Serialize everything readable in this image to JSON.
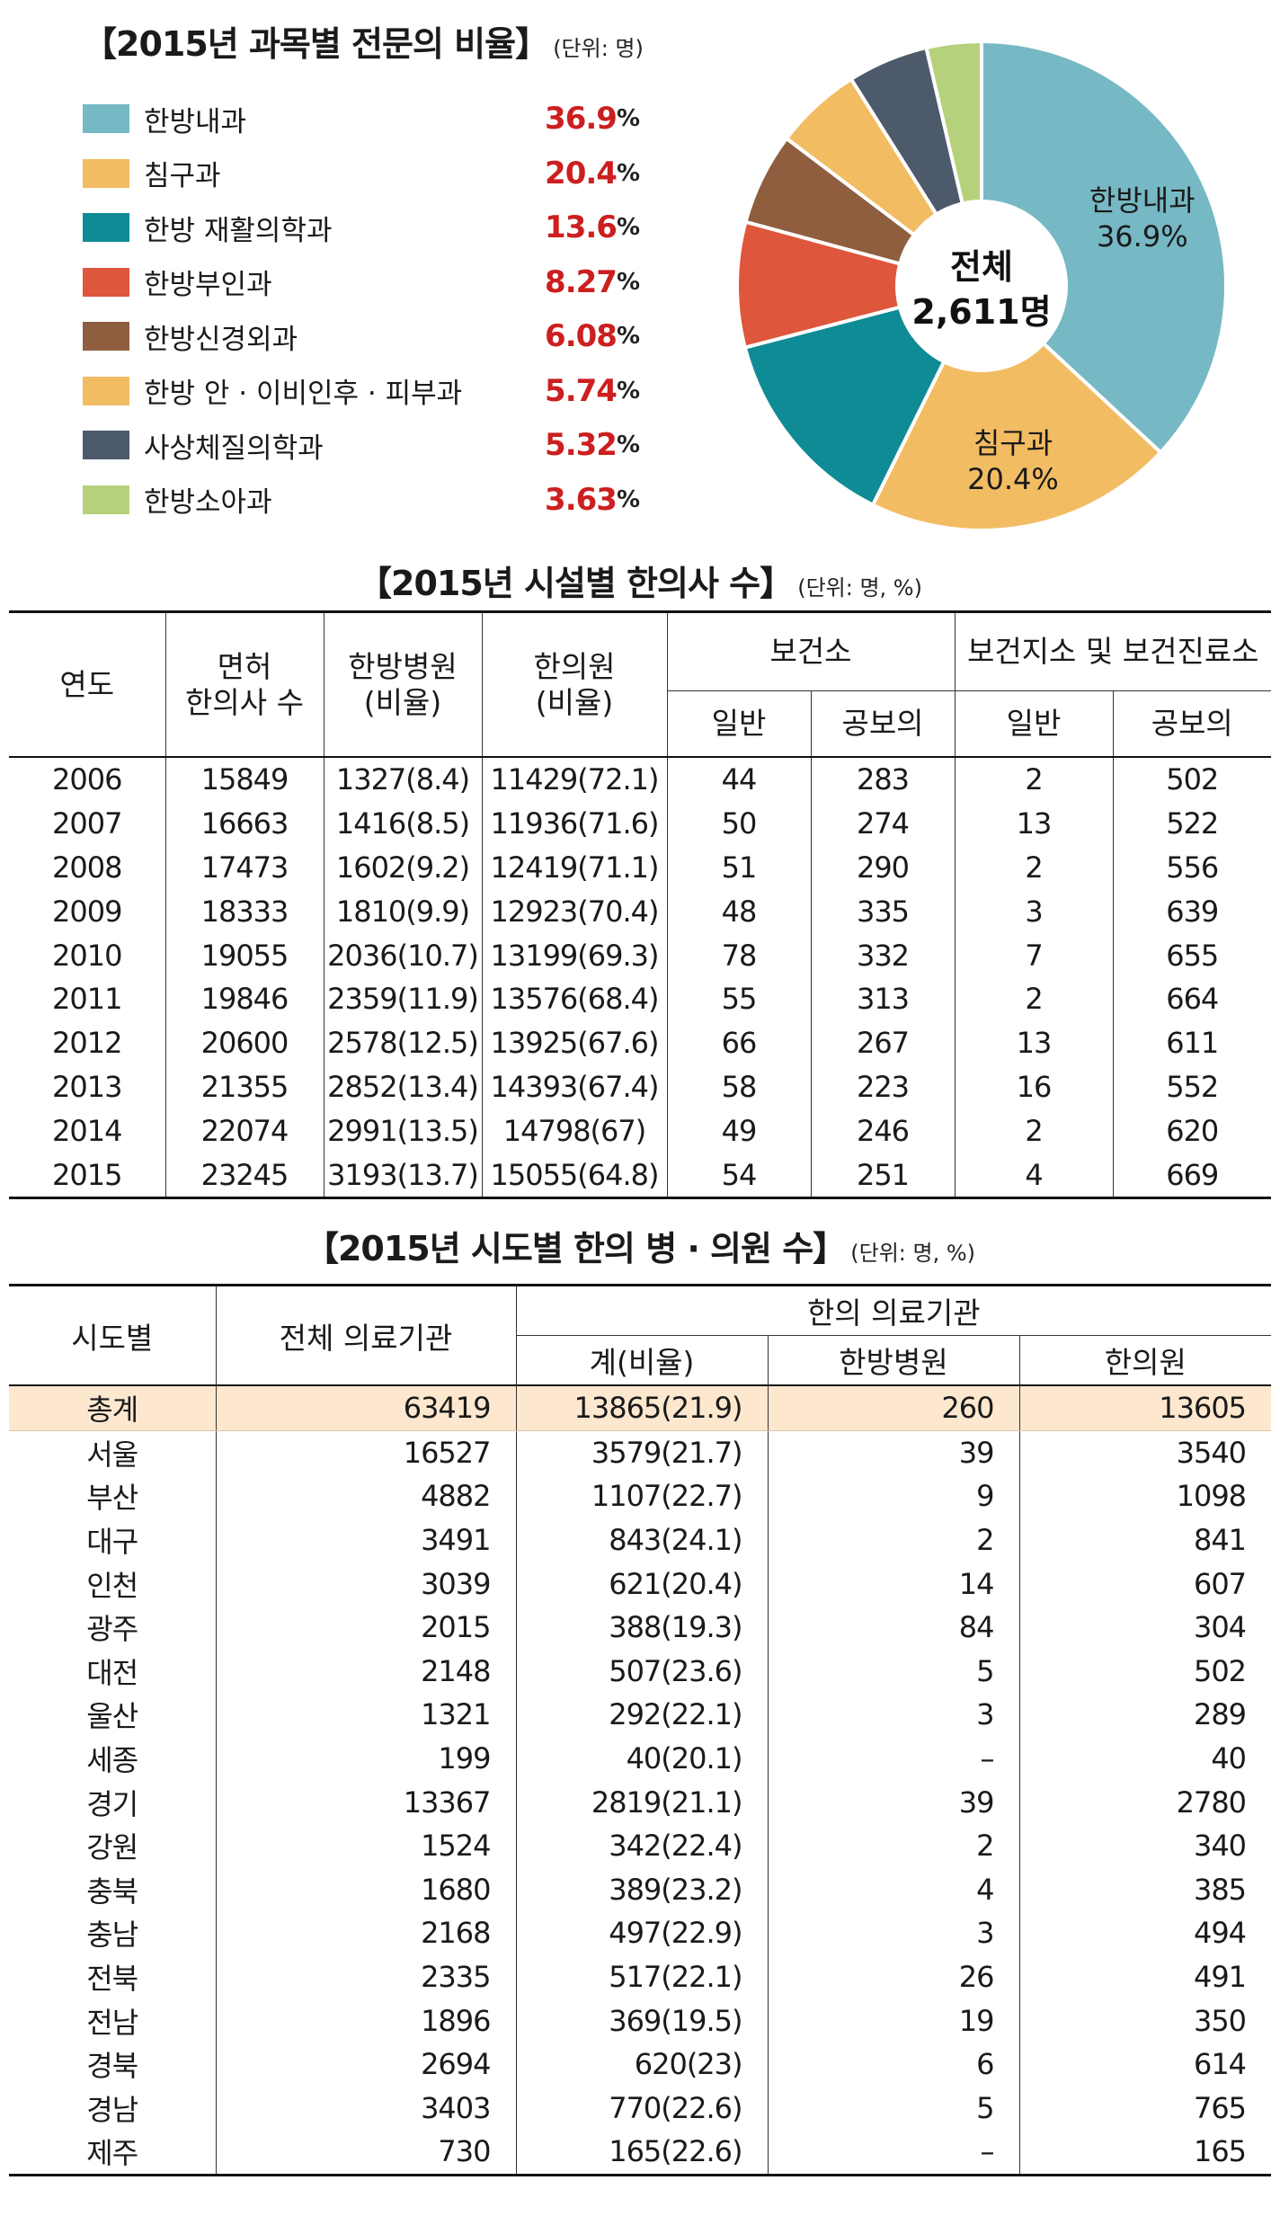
{
  "pie_section": {
    "title": "【2015년 과목별 전문의 비율】",
    "unit": "(단위: 명)",
    "center_line1": "전체",
    "center_line2": "2,611명",
    "percent_symbol": "%"
  },
  "facility_section": {
    "title": "【2015년 시설별 한의사 수】",
    "unit": "(단위: 명, %)",
    "headers": {
      "year": "연도",
      "licensed_1": "면허",
      "licensed_2": "한의사 수",
      "hospital_1": "한방병원",
      "hospital_2": "(비율)",
      "clinic_1": "한의원",
      "clinic_2": "(비율)",
      "health_center": "보건소",
      "branch_center": "보건지소 및 보건진료소",
      "general": "일반",
      "public_doctor": "공보의"
    },
    "rows": [
      [
        "2006",
        "15849",
        "1327(8.4)",
        "11429(72.1)",
        "44",
        "283",
        "2",
        "502"
      ],
      [
        "2007",
        "16663",
        "1416(8.5)",
        "11936(71.6)",
        "50",
        "274",
        "13",
        "522"
      ],
      [
        "2008",
        "17473",
        "1602(9.2)",
        "12419(71.1)",
        "51",
        "290",
        "2",
        "556"
      ],
      [
        "2009",
        "18333",
        "1810(9.9)",
        "12923(70.4)",
        "48",
        "335",
        "3",
        "639"
      ],
      [
        "2010",
        "19055",
        "2036(10.7)",
        "13199(69.3)",
        "78",
        "332",
        "7",
        "655"
      ],
      [
        "2011",
        "19846",
        "2359(11.9)",
        "13576(68.4)",
        "55",
        "313",
        "2",
        "664"
      ],
      [
        "2012",
        "20600",
        "2578(12.5)",
        "13925(67.6)",
        "66",
        "267",
        "13",
        "611"
      ],
      [
        "2013",
        "21355",
        "2852(13.4)",
        "14393(67.4)",
        "58",
        "223",
        "16",
        "552"
      ],
      [
        "2014",
        "22074",
        "2991(13.5)",
        "14798(67)",
        "49",
        "246",
        "2",
        "620"
      ],
      [
        "2015",
        "23245",
        "3193(13.7)",
        "15055(64.8)",
        "54",
        "251",
        "4",
        "669"
      ]
    ]
  },
  "region_section": {
    "title": "【2015년 시도별 한의 병 · 의원 수】",
    "unit": "(단위: 명, %)",
    "headers": {
      "region": "시도별",
      "total_institutions": "전체 의료기관",
      "km_institutions": "한의 의료기관",
      "sum_ratio": "계(비율)",
      "km_hospital": "한방병원",
      "km_clinic": "한의원"
    },
    "rows": [
      [
        "총계",
        "63419",
        "13865(21.9)",
        "260",
        "13605"
      ],
      [
        "서울",
        "16527",
        "3579(21.7)",
        "39",
        "3540"
      ],
      [
        "부산",
        "4882",
        "1107(22.7)",
        "9",
        "1098"
      ],
      [
        "대구",
        "3491",
        "843(24.1)",
        "2",
        "841"
      ],
      [
        "인천",
        "3039",
        "621(20.4)",
        "14",
        "607"
      ],
      [
        "광주",
        "2015",
        "388(19.3)",
        "84",
        "304"
      ],
      [
        "대전",
        "2148",
        "507(23.6)",
        "5",
        "502"
      ],
      [
        "울산",
        "1321",
        "292(22.1)",
        "3",
        "289"
      ],
      [
        "세종",
        "199",
        "40(20.1)",
        "–",
        "40"
      ],
      [
        "경기",
        "13367",
        "2819(21.1)",
        "39",
        "2780"
      ],
      [
        "강원",
        "1524",
        "342(22.4)",
        "2",
        "340"
      ],
      [
        "충북",
        "1680",
        "389(23.2)",
        "4",
        "385"
      ],
      [
        "충남",
        "2168",
        "497(22.9)",
        "3",
        "494"
      ],
      [
        "전북",
        "2335",
        "517(22.1)",
        "26",
        "491"
      ],
      [
        "전남",
        "1896",
        "369(19.5)",
        "19",
        "350"
      ],
      [
        "경북",
        "2694",
        "620(23)",
        "6",
        "614"
      ],
      [
        "경남",
        "3403",
        "770(22.6)",
        "5",
        "765"
      ],
      [
        "제주",
        "730",
        "165(22.6)",
        "–",
        "165"
      ]
    ]
  },
  "chart_data": {
    "type": "pie",
    "title": "【2015년 과목별 전문의 비율】",
    "total_label": "전체 2,611명",
    "slices": [
      {
        "label": "한방내과",
        "value": 36.9,
        "color": "#76b8c4"
      },
      {
        "label": "침구과",
        "value": 20.4,
        "color": "#f2bc63"
      },
      {
        "label": "한방 재활의학과",
        "value": 13.6,
        "color": "#0f8b95"
      },
      {
        "label": "한방부인과",
        "value": 8.27,
        "color": "#de563c"
      },
      {
        "label": "한방신경외과",
        "value": 6.08,
        "color": "#8f5e3f"
      },
      {
        "label": "한방 안 · 이비인후 · 피부과",
        "value": 5.74,
        "color": "#f2bc63"
      },
      {
        "label": "사상체질의학과",
        "value": 5.32,
        "color": "#4d5a6b"
      },
      {
        "label": "한방소아과",
        "value": 3.63,
        "color": "#b6d17c"
      }
    ],
    "slice_labels": [
      {
        "index": 0,
        "name": "한방내과",
        "value": "36.9%"
      },
      {
        "index": 1,
        "name": "침구과",
        "value": "20.4%"
      }
    ]
  }
}
